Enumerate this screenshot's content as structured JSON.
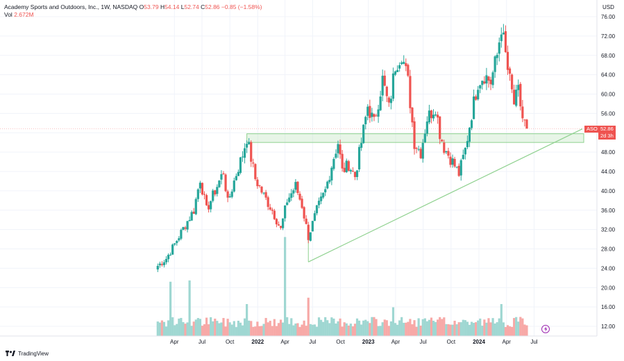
{
  "header": {
    "symbol": "Academy Sports and Outdoors, Inc., 1W, NASDAQ",
    "o_label": "O",
    "o_value": "53.79",
    "h_label": "H",
    "h_value": "54.14",
    "l_label": "L",
    "l_value": "52.74",
    "c_label": "C",
    "c_value": "52.86",
    "change": "−0.85 (−1.58%)",
    "vol_label": "Vol",
    "vol_value": "2.672M"
  },
  "currency": "USD",
  "price_tag": {
    "ticker": "ASO",
    "price": "52.86",
    "countdown": "2d 3h"
  },
  "brand": "TradingView",
  "colors": {
    "up": "#26a69a",
    "down": "#ef5350",
    "up_vol": "#9fd7d2",
    "down_vol": "#f7a9a7",
    "zone": "#b9e3b9",
    "trend": "#8fd18f"
  },
  "chart_data": {
    "type": "candlestick",
    "title": "Academy Sports and Outdoors, Inc., 1W, NASDAQ",
    "y_ticks": [
      "12.00",
      "16.00",
      "20.00",
      "24.00",
      "28.00",
      "32.00",
      "36.00",
      "40.00",
      "44.00",
      "48.00",
      "52.00",
      "56.00",
      "60.00",
      "64.00",
      "68.00",
      "72.00",
      "76.00"
    ],
    "x_ticks": [
      {
        "label": "Apr",
        "date": "2021-04"
      },
      {
        "label": "Jul",
        "date": "2021-07"
      },
      {
        "label": "Oct",
        "date": "2021-10"
      },
      {
        "label": "2022",
        "date": "2022-01"
      },
      {
        "label": "Apr",
        "date": "2022-04"
      },
      {
        "label": "Jul",
        "date": "2022-07"
      },
      {
        "label": "Oct",
        "date": "2022-10"
      },
      {
        "label": "2023",
        "date": "2023-01"
      },
      {
        "label": "Apr",
        "date": "2023-04"
      },
      {
        "label": "Jul",
        "date": "2023-07"
      },
      {
        "label": "Oct",
        "date": "2023-10"
      },
      {
        "label": "2024",
        "date": "2024-01"
      },
      {
        "label": "Apr",
        "date": "2024-04"
      },
      {
        "label": "Jul",
        "date": "2024-07"
      }
    ],
    "close_path": [
      [
        "2021-02-05",
        24.5
      ],
      [
        "2021-03-05",
        26.0
      ],
      [
        "2021-04-02",
        29.0
      ],
      [
        "2021-05-07",
        33.0
      ],
      [
        "2021-06-04",
        36.0
      ],
      [
        "2021-06-25",
        42.5
      ],
      [
        "2021-07-16",
        36.0
      ],
      [
        "2021-08-13",
        40.0
      ],
      [
        "2021-09-10",
        44.0
      ],
      [
        "2021-09-24",
        37.5
      ],
      [
        "2021-10-22",
        43.5
      ],
      [
        "2021-11-12",
        47.5
      ],
      [
        "2021-11-26",
        51.0
      ],
      [
        "2021-12-24",
        42.5
      ],
      [
        "2022-01-21",
        39.0
      ],
      [
        "2022-02-18",
        36.0
      ],
      [
        "2022-03-18",
        32.0
      ],
      [
        "2022-04-08",
        38.0
      ],
      [
        "2022-05-06",
        41.0
      ],
      [
        "2022-05-27",
        37.0
      ],
      [
        "2022-06-17",
        30.5
      ],
      [
        "2022-07-15",
        36.0
      ],
      [
        "2022-08-12",
        40.0
      ],
      [
        "2022-09-09",
        47.0
      ],
      [
        "2022-09-23",
        50.0
      ],
      [
        "2022-10-07",
        44.0
      ],
      [
        "2022-10-28",
        45.5
      ],
      [
        "2022-11-18",
        43.0
      ],
      [
        "2022-12-09",
        50.0
      ],
      [
        "2022-12-30",
        57.5
      ],
      [
        "2023-01-20",
        54.0
      ],
      [
        "2023-02-17",
        63.0
      ],
      [
        "2023-03-10",
        57.0
      ],
      [
        "2023-03-31",
        66.0
      ],
      [
        "2023-04-21",
        68.5
      ],
      [
        "2023-05-12",
        62.5
      ],
      [
        "2023-06-02",
        50.0
      ],
      [
        "2023-06-23",
        48.0
      ],
      [
        "2023-07-14",
        55.0
      ],
      [
        "2023-08-11",
        57.5
      ],
      [
        "2023-08-25",
        52.0
      ],
      [
        "2023-09-08",
        49.0
      ],
      [
        "2023-10-06",
        46.0
      ],
      [
        "2023-10-27",
        43.5
      ],
      [
        "2023-11-17",
        48.5
      ],
      [
        "2023-12-08",
        56.0
      ],
      [
        "2023-12-29",
        62.5
      ],
      [
        "2024-01-19",
        64.0
      ],
      [
        "2024-02-09",
        62.5
      ],
      [
        "2024-03-01",
        68.0
      ],
      [
        "2024-03-15",
        74.0
      ],
      [
        "2024-04-05",
        65.0
      ],
      [
        "2024-04-26",
        58.0
      ],
      [
        "2024-05-10",
        60.5
      ],
      [
        "2024-05-24",
        55.0
      ],
      [
        "2024-06-07",
        52.86
      ]
    ],
    "last_price": 52.86,
    "support_zone": {
      "from": "2021-11-26",
      "to": "2024-07-26",
      "low": 50.0,
      "high": 51.8
    },
    "trendline": {
      "start": [
        "2022-06-17",
        25.3
      ],
      "end": [
        "2024-07-26",
        52.8
      ]
    },
    "volume_peaks_millions": [
      [
        "2021-03-19",
        8.5
      ],
      [
        "2021-05-21",
        8.7
      ],
      [
        "2021-11-26",
        5.0
      ],
      [
        "2022-06-17",
        6.0
      ],
      [
        "2022-04-01",
        15.5
      ],
      [
        "2023-03-24",
        4.5
      ],
      [
        "2024-03-15",
        5.0
      ]
    ],
    "ylim": [
      10.0,
      79.0
    ]
  }
}
